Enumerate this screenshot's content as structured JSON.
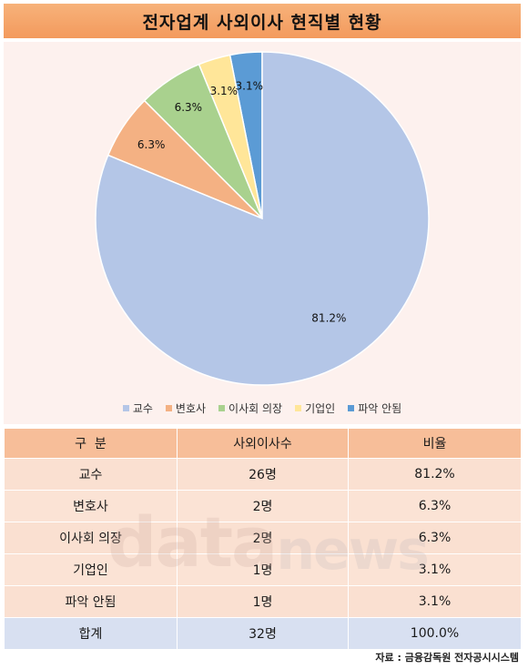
{
  "title": "전자업계 사외이사 현직별 현황",
  "chart_data": {
    "type": "pie",
    "categories": [
      "교수",
      "변호사",
      "이사회 의장",
      "기업인",
      "파악 안됨"
    ],
    "values": [
      81.2,
      6.3,
      6.3,
      3.1,
      3.1
    ],
    "labels": [
      "81.2%",
      "6.3%",
      "6.3%",
      "3.1%",
      "3.1%"
    ],
    "colors": [
      "#b4c6e7",
      "#f4b183",
      "#a9d18e",
      "#ffe699",
      "#5b9bd5"
    ],
    "legend_position": "bottom"
  },
  "table": {
    "headers": [
      "구  분",
      "사외이사수",
      "비율"
    ],
    "rows": [
      [
        "교수",
        "26명",
        "81.2%"
      ],
      [
        "변호사",
        "2명",
        "6.3%"
      ],
      [
        "이사회 의장",
        "2명",
        "6.3%"
      ],
      [
        "기업인",
        "1명",
        "3.1%"
      ],
      [
        "파악 안됨",
        "1명",
        "3.1%"
      ]
    ],
    "total": [
      "합계",
      "32명",
      "100.0%"
    ]
  },
  "watermark": {
    "part1": "data",
    "part2": "news"
  },
  "source": "자료 : 금융감독원 전자공시시스템"
}
